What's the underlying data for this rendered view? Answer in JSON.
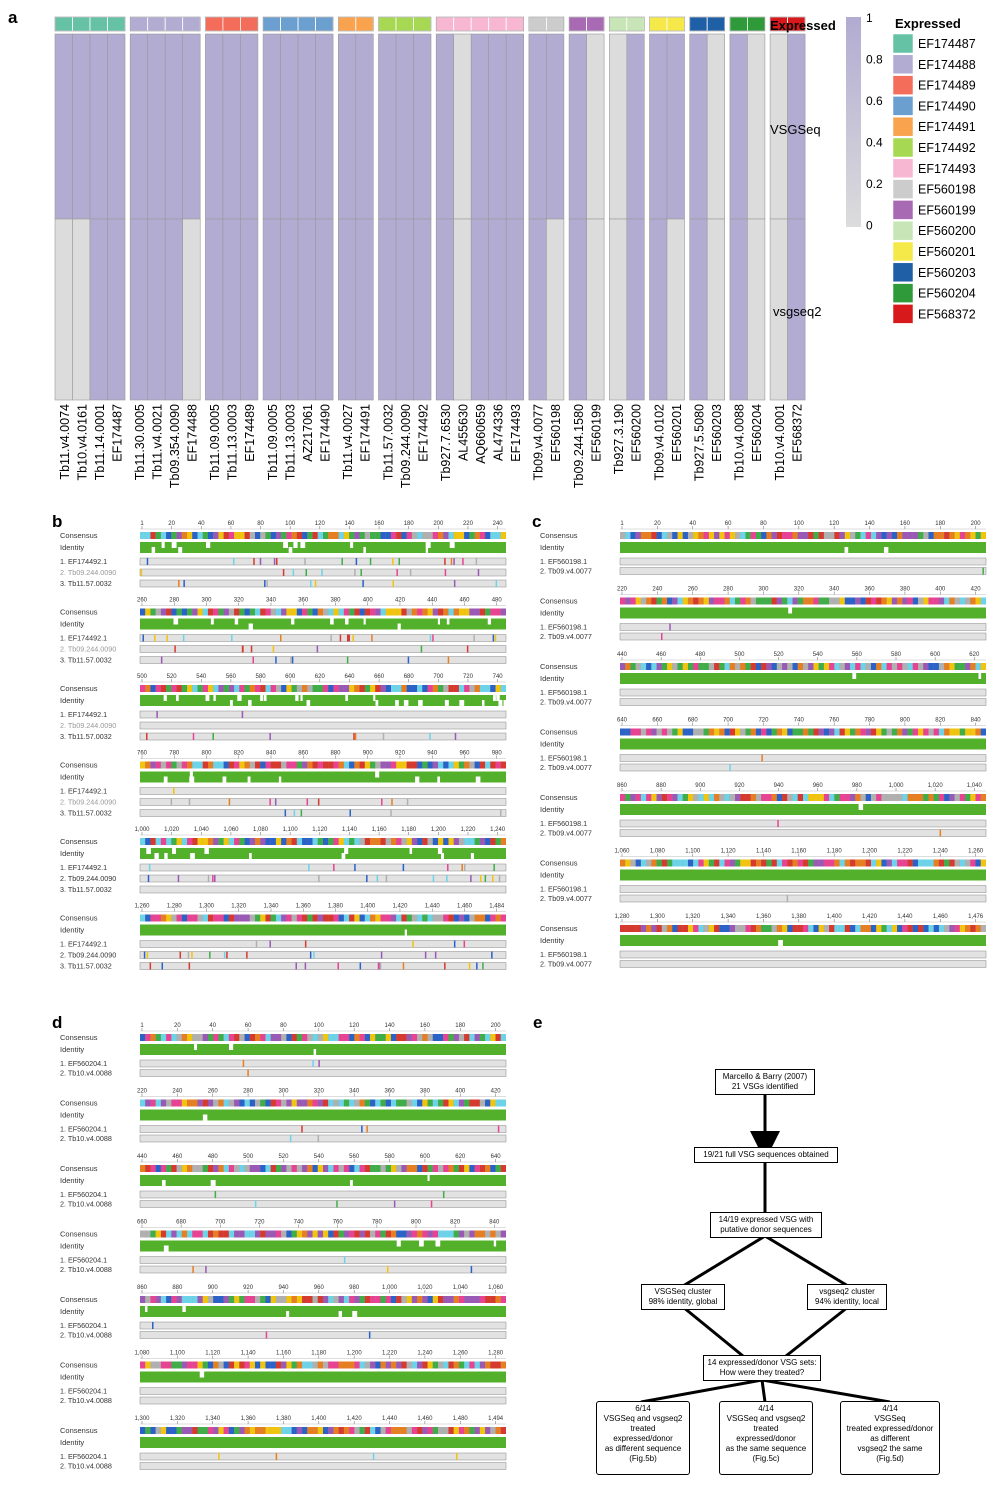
{
  "panels": {
    "a": "a",
    "b": "b",
    "c": "c",
    "d": "d",
    "e": "e"
  },
  "heatmap": {
    "row_labels": [
      "Expressed",
      "VSGSeq",
      "vsgseq2"
    ],
    "columns": [
      {
        "name": "Tb11.v4.0074",
        "group": "EF174487",
        "vsgseq": 1,
        "vsgseq2": 0
      },
      {
        "name": "Tb10.v4.0161",
        "group": "EF174487",
        "vsgseq": 1,
        "vsgseq2": 0
      },
      {
        "name": "Tb11.14.0001",
        "group": "EF174487",
        "vsgseq": 1,
        "vsgseq2": 1
      },
      {
        "name": "EF174487",
        "group": "EF174487",
        "vsgseq": 1,
        "vsgseq2": 1
      },
      {
        "name": "Tb11.30.0005",
        "group": "EF174488",
        "vsgseq": 1,
        "vsgseq2": 1
      },
      {
        "name": "Tb11.v4.0021",
        "group": "EF174488",
        "vsgseq": 1,
        "vsgseq2": 1
      },
      {
        "name": "Tb09.354.0090",
        "group": "EF174488",
        "vsgseq": 1,
        "vsgseq2": 1
      },
      {
        "name": "EF174488",
        "group": "EF174488",
        "vsgseq": 1,
        "vsgseq2": 0
      },
      {
        "name": "Tb11.09.0005",
        "group": "EF174489",
        "vsgseq": 1,
        "vsgseq2": 1
      },
      {
        "name": "Tb11.13.0003",
        "group": "EF174489",
        "vsgseq": 1,
        "vsgseq2": 1
      },
      {
        "name": "EF174489",
        "group": "EF174489",
        "vsgseq": 1,
        "vsgseq2": 1
      },
      {
        "name": "Tb11.09.0005",
        "group": "EF174490",
        "vsgseq": 1,
        "vsgseq2": 1
      },
      {
        "name": "Tb11.13.0003",
        "group": "EF174490",
        "vsgseq": 1,
        "vsgseq2": 1
      },
      {
        "name": "AZ217061",
        "group": "EF174490",
        "vsgseq": 1,
        "vsgseq2": 1
      },
      {
        "name": "EF174490",
        "group": "EF174490",
        "vsgseq": 1,
        "vsgseq2": 1
      },
      {
        "name": "Tb11.v4.0027",
        "group": "EF174491",
        "vsgseq": 1,
        "vsgseq2": 1
      },
      {
        "name": "EF174491",
        "group": "EF174491",
        "vsgseq": 1,
        "vsgseq2": 1
      },
      {
        "name": "Tb11.57.0032",
        "group": "EF174492",
        "vsgseq": 1,
        "vsgseq2": 1
      },
      {
        "name": "Tb09.244.0090",
        "group": "EF174492",
        "vsgseq": 1,
        "vsgseq2": 1
      },
      {
        "name": "EF174492",
        "group": "EF174492",
        "vsgseq": 1,
        "vsgseq2": 1
      },
      {
        "name": "Tb927.7.6530",
        "group": "EF174493",
        "vsgseq": 1,
        "vsgseq2": 1
      },
      {
        "name": "AL455630",
        "group": "EF174493",
        "vsgseq": 0,
        "vsgseq2": 0
      },
      {
        "name": "AQ660659",
        "group": "EF174493",
        "vsgseq": 1,
        "vsgseq2": 1
      },
      {
        "name": "AL474336",
        "group": "EF174493",
        "vsgseq": 1,
        "vsgseq2": 1
      },
      {
        "name": "EF174493",
        "group": "EF174493",
        "vsgseq": 1,
        "vsgseq2": 1
      },
      {
        "name": "Tb09.v4.0077",
        "group": "EF560198",
        "vsgseq": 1,
        "vsgseq2": 1
      },
      {
        "name": "EF560198",
        "group": "EF560198",
        "vsgseq": 1,
        "vsgseq2": 0
      },
      {
        "name": "Tb09.244.1580",
        "group": "EF560199",
        "vsgseq": 1,
        "vsgseq2": 1
      },
      {
        "name": "EF560199",
        "group": "EF560199",
        "vsgseq": 0,
        "vsgseq2": 0
      },
      {
        "name": "Tb927.3.190",
        "group": "EF560200",
        "vsgseq": 0,
        "vsgseq2": 0
      },
      {
        "name": "EF560200",
        "group": "EF560200",
        "vsgseq": 1,
        "vsgseq2": 1
      },
      {
        "name": "Tb09.v4.0102",
        "group": "EF560201",
        "vsgseq": 1,
        "vsgseq2": 1
      },
      {
        "name": "EF560201",
        "group": "EF560201",
        "vsgseq": 1,
        "vsgseq2": 0
      },
      {
        "name": "Tb927.5.5080",
        "group": "EF560203",
        "vsgseq": 1,
        "vsgseq2": 1
      },
      {
        "name": "EF560203",
        "group": "EF560203",
        "vsgseq": 0,
        "vsgseq2": 0
      },
      {
        "name": "Tb10.v4.0088",
        "group": "EF560204",
        "vsgseq": 1,
        "vsgseq2": 1
      },
      {
        "name": "EF560204",
        "group": "EF560204",
        "vsgseq": 0,
        "vsgseq2": 0
      },
      {
        "name": "Tb10.v4.0001",
        "group": "EF568372",
        "vsgseq": 0,
        "vsgseq2": 0
      },
      {
        "name": "EF568372",
        "group": "EF568372",
        "vsgseq": 1,
        "vsgseq2": 1
      }
    ],
    "scale": {
      "ticks": [
        "1",
        "0.8",
        "0.6",
        "0.4",
        "0.2",
        "0"
      ],
      "high_color": "#b2abd2",
      "low_color": "#dcdcdc"
    },
    "legend_title": "Expressed",
    "legend": [
      {
        "label": "EF174487",
        "color": "#66c2a5"
      },
      {
        "label": "EF174488",
        "color": "#b2abd2"
      },
      {
        "label": "EF174489",
        "color": "#f46d5a"
      },
      {
        "label": "EF174490",
        "color": "#6a9fcf"
      },
      {
        "label": "EF174491",
        "color": "#f9a34f"
      },
      {
        "label": "EF174492",
        "color": "#a6d854"
      },
      {
        "label": "EF174493",
        "color": "#f7b6d2"
      },
      {
        "label": "EF560198",
        "color": "#cccccc"
      },
      {
        "label": "EF560199",
        "color": "#a86bb3"
      },
      {
        "label": "EF560200",
        "color": "#c7e5b6"
      },
      {
        "label": "EF560201",
        "color": "#f5e94a"
      },
      {
        "label": "EF560203",
        "color": "#1f5fa6"
      },
      {
        "label": "EF560204",
        "color": "#2e9a3a"
      },
      {
        "label": "EF568372",
        "color": "#d7191c"
      }
    ]
  },
  "alignments": {
    "b": {
      "row_labels": {
        "consensus": "Consensus",
        "identity": "Identity"
      },
      "seqs": [
        "1. EF174492.1",
        "2. Tb09.244.0090",
        "3. Tb11.57.0032"
      ],
      "blocks": [
        {
          "ticks": [
            "1",
            "20",
            "40",
            "60",
            "80",
            "100",
            "120",
            "140",
            "160",
            "180",
            "200",
            "220",
            "240"
          ]
        },
        {
          "ticks": [
            "260",
            "280",
            "300",
            "320",
            "340",
            "360",
            "380",
            "400",
            "420",
            "440",
            "460",
            "480"
          ]
        },
        {
          "ticks": [
            "500",
            "520",
            "540",
            "560",
            "580",
            "600",
            "620",
            "640",
            "660",
            "680",
            "700",
            "720",
            "740"
          ]
        },
        {
          "ticks": [
            "760",
            "780",
            "800",
            "820",
            "840",
            "860",
            "880",
            "900",
            "920",
            "940",
            "960",
            "980"
          ]
        },
        {
          "ticks": [
            "1,000",
            "1,020",
            "1,040",
            "1,060",
            "1,080",
            "1,100",
            "1,120",
            "1,140",
            "1,160",
            "1,180",
            "1,200",
            "1,220",
            "1,240"
          ]
        },
        {
          "ticks": [
            "1,260",
            "1,280",
            "1,300",
            "1,320",
            "1,340",
            "1,360",
            "1,380",
            "1,400",
            "1,420",
            "1,440",
            "1,460",
            "1,484"
          ]
        }
      ]
    },
    "c": {
      "row_labels": {
        "consensus": "Consensus",
        "identity": "Identity"
      },
      "seqs": [
        "1. EF560198.1",
        "2. Tb09.v4.0077"
      ],
      "blocks": [
        {
          "ticks": [
            "1",
            "20",
            "40",
            "60",
            "80",
            "100",
            "120",
            "140",
            "160",
            "180",
            "200"
          ]
        },
        {
          "ticks": [
            "220",
            "240",
            "260",
            "280",
            "300",
            "320",
            "340",
            "360",
            "380",
            "400",
            "420"
          ]
        },
        {
          "ticks": [
            "440",
            "460",
            "480",
            "500",
            "520",
            "540",
            "560",
            "580",
            "600",
            "620"
          ]
        },
        {
          "ticks": [
            "640",
            "660",
            "680",
            "700",
            "720",
            "740",
            "760",
            "780",
            "800",
            "820",
            "840"
          ]
        },
        {
          "ticks": [
            "860",
            "880",
            "900",
            "920",
            "940",
            "960",
            "980",
            "1,000",
            "1,020",
            "1,040"
          ]
        },
        {
          "ticks": [
            "1,060",
            "1,080",
            "1,100",
            "1,120",
            "1,140",
            "1,160",
            "1,180",
            "1,200",
            "1,220",
            "1,240",
            "1,260"
          ]
        },
        {
          "ticks": [
            "1,280",
            "1,300",
            "1,320",
            "1,340",
            "1,360",
            "1,380",
            "1,400",
            "1,420",
            "1,440",
            "1,460",
            "1,476"
          ]
        }
      ]
    },
    "d": {
      "row_labels": {
        "consensus": "Consensus",
        "identity": "Identity"
      },
      "seqs": [
        "1. EF560204.1",
        "2. Tb10.v4.0088"
      ],
      "blocks": [
        {
          "ticks": [
            "1",
            "20",
            "40",
            "60",
            "80",
            "100",
            "120",
            "140",
            "160",
            "180",
            "200"
          ]
        },
        {
          "ticks": [
            "220",
            "240",
            "260",
            "280",
            "300",
            "320",
            "340",
            "360",
            "380",
            "400",
            "420"
          ]
        },
        {
          "ticks": [
            "440",
            "460",
            "480",
            "500",
            "520",
            "540",
            "560",
            "580",
            "600",
            "620",
            "640"
          ]
        },
        {
          "ticks": [
            "660",
            "680",
            "700",
            "720",
            "740",
            "760",
            "780",
            "800",
            "820",
            "840"
          ]
        },
        {
          "ticks": [
            "860",
            "880",
            "900",
            "920",
            "940",
            "960",
            "980",
            "1,000",
            "1,020",
            "1,040",
            "1,060"
          ]
        },
        {
          "ticks": [
            "1,080",
            "1,100",
            "1,120",
            "1,140",
            "1,160",
            "1,180",
            "1,200",
            "1,220",
            "1,240",
            "1,260",
            "1,280"
          ]
        },
        {
          "ticks": [
            "1,300",
            "1,320",
            "1,340",
            "1,360",
            "1,380",
            "1,400",
            "1,420",
            "1,440",
            "1,460",
            "1,480",
            "1,494"
          ]
        }
      ]
    }
  },
  "flowchart": {
    "n1": [
      "Marcello & Barry (2007)",
      "21 VSGs identified"
    ],
    "n2": [
      "19/21 full VSG sequences obtained"
    ],
    "n3": [
      "14/19 expressed VSG with",
      "putative donor sequences"
    ],
    "n4": [
      "VSGSeq cluster",
      "98% identity, global"
    ],
    "n5": [
      "vsgseq2 cluster",
      "94% identity, local"
    ],
    "n6": [
      "14 expressed/donor VSG sets:",
      "How were they treated?"
    ],
    "n7": [
      "6/14",
      "VSGSeq and vsgseq2",
      "treated",
      "expressed/donor",
      "as different sequence",
      "(Fig.5b)"
    ],
    "n8": [
      "4/14",
      "VSGSeq and vsgseq2",
      "treated",
      "expressed/donor",
      "as the same sequence",
      "(Fig.5c)"
    ],
    "n9": [
      "4/14",
      "VSGSeq",
      "treated expressed/donor",
      "as different",
      "vsgseq2 the same",
      "(Fig.5d)"
    ]
  }
}
